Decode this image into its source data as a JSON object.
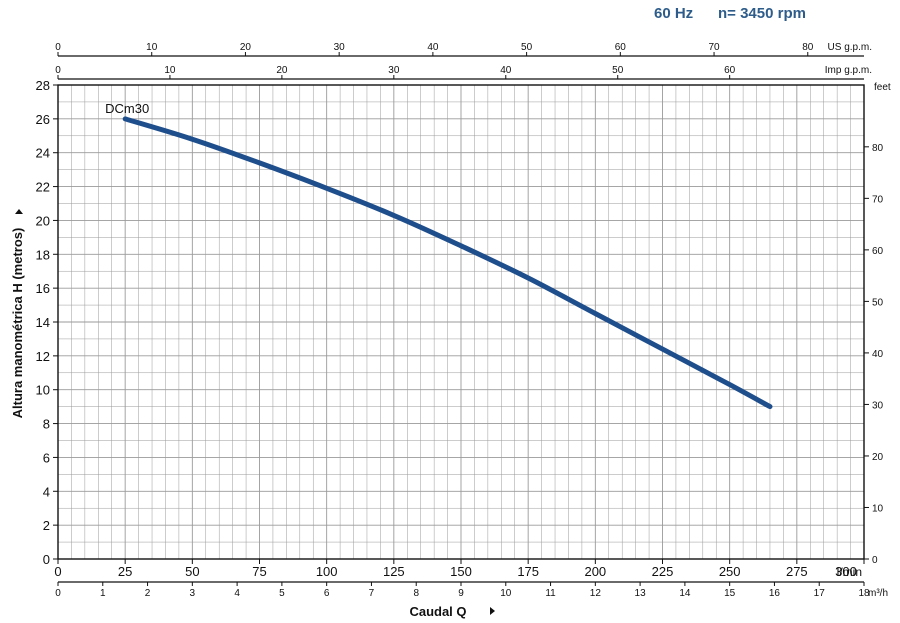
{
  "header": {
    "freq": "60 Hz",
    "speed": "n= 3450 rpm"
  },
  "colors": {
    "curve": "#1f4e8c",
    "grid": "#9a9a9a",
    "axis": "#111111",
    "header": "#2e5c8a"
  },
  "chart_data": {
    "type": "line",
    "ylabel": "Altura manométrica H (metros)",
    "xlabel": "Caudal Q",
    "x_lmin": {
      "range": [
        0,
        300
      ],
      "ticks": [
        0,
        25,
        50,
        75,
        100,
        125,
        150,
        175,
        200,
        225,
        250,
        275,
        300
      ],
      "unit": "l/min"
    },
    "x_m3h": {
      "range": [
        0,
        18
      ],
      "ticks": [
        0,
        1,
        2,
        3,
        4,
        5,
        6,
        7,
        8,
        9,
        10,
        11,
        12,
        13,
        14,
        15,
        16,
        17,
        18
      ],
      "unit": "m³/h"
    },
    "x_us_gpm": {
      "range": [
        0,
        86
      ],
      "ticks": [
        0,
        10,
        20,
        30,
        40,
        50,
        60,
        70,
        80
      ],
      "unit": "US g.p.m."
    },
    "x_imp_gpm": {
      "range": [
        0,
        72
      ],
      "ticks": [
        0,
        10,
        20,
        30,
        40,
        50,
        60
      ],
      "unit": "Imp g.p.m."
    },
    "y_m": {
      "range": [
        0,
        28
      ],
      "ticks": [
        0,
        2,
        4,
        6,
        8,
        10,
        12,
        14,
        16,
        18,
        20,
        22,
        24,
        26,
        28
      ]
    },
    "y_feet": {
      "range": [
        0,
        92
      ],
      "ticks": [
        0,
        10,
        20,
        30,
        40,
        50,
        60,
        70,
        80
      ],
      "unit": "feet"
    },
    "grid": true,
    "series": [
      {
        "name": "DCm30",
        "x": [
          25,
          50,
          75,
          100,
          125,
          150,
          175,
          200,
          225,
          250,
          265
        ],
        "y": [
          26,
          24.8,
          23.4,
          21.9,
          20.3,
          18.5,
          16.6,
          14.5,
          12.4,
          10.3,
          9
        ]
      }
    ]
  }
}
